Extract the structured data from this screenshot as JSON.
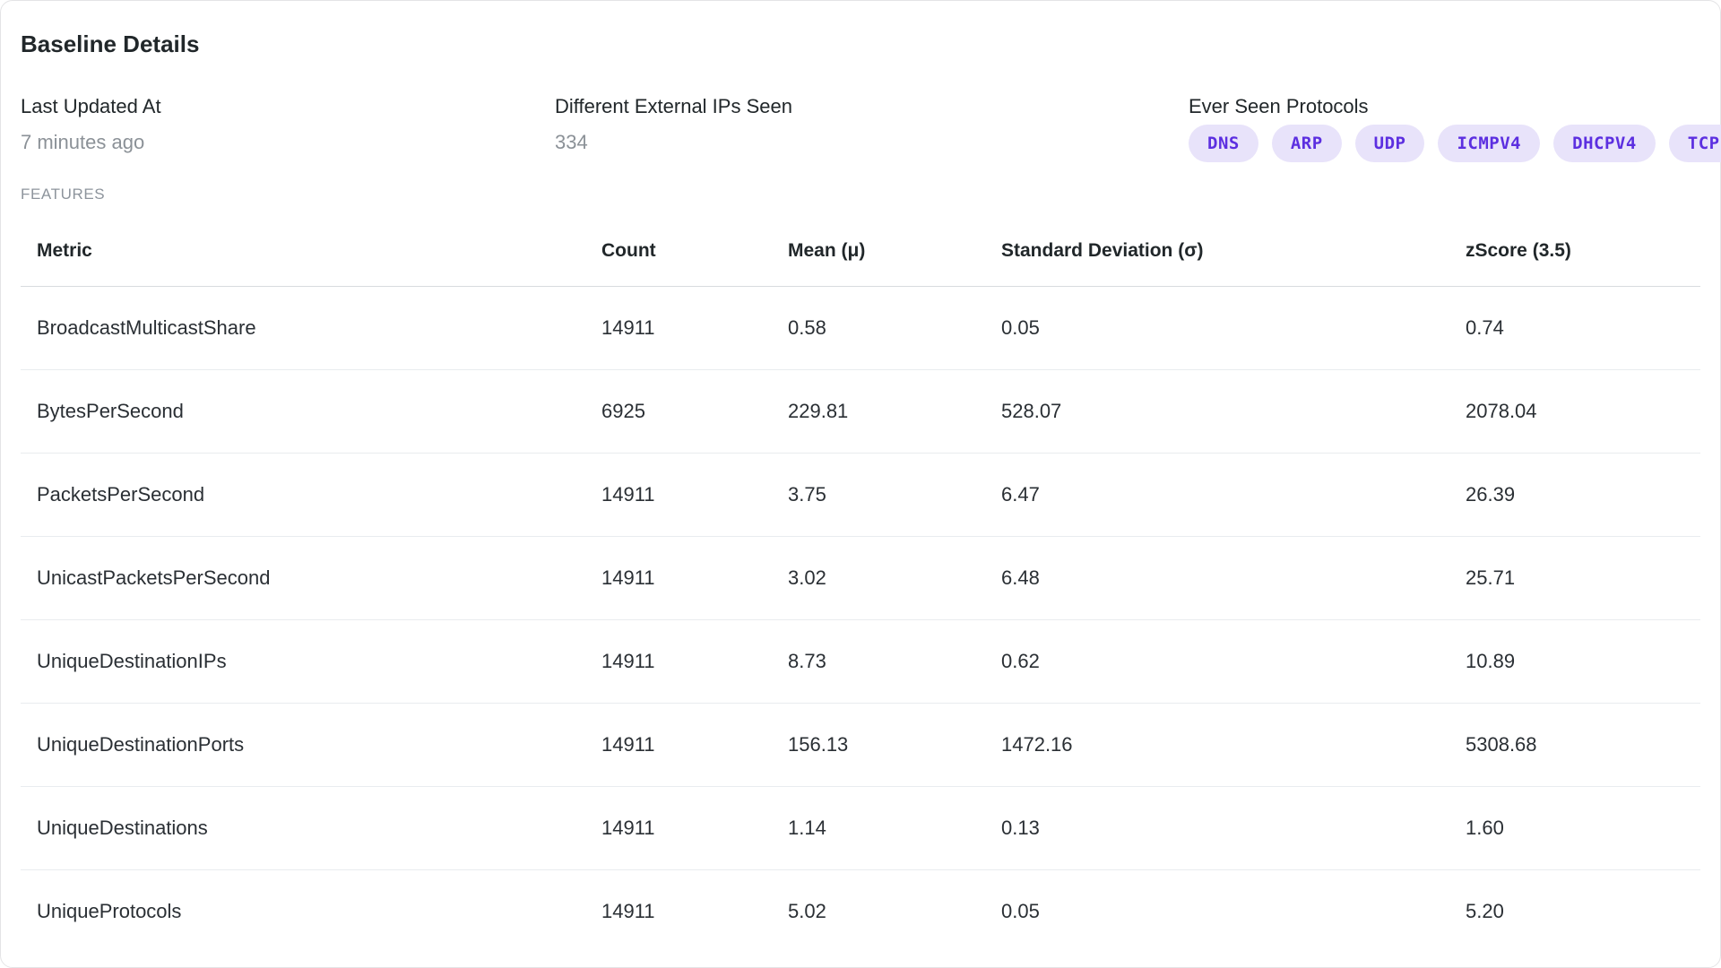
{
  "panel": {
    "title": "Baseline Details"
  },
  "info": {
    "last_updated": {
      "label": "Last Updated At",
      "value": "7 minutes ago"
    },
    "external_ips": {
      "label": "Different External IPs Seen",
      "value": "334"
    },
    "protocols": {
      "label": "Ever Seen Protocols",
      "items": [
        "DNS",
        "ARP",
        "UDP",
        "ICMPV4",
        "DHCPV4",
        "TCP"
      ]
    }
  },
  "features": {
    "section_label": "FEATURES",
    "table": {
      "columns": [
        "Metric",
        "Count",
        "Mean (μ)",
        "Standard Deviation (σ)",
        "zScore (3.5)"
      ],
      "rows": [
        [
          "BroadcastMulticastShare",
          "14911",
          "0.58",
          "0.05",
          "0.74"
        ],
        [
          "BytesPerSecond",
          "6925",
          "229.81",
          "528.07",
          "2078.04"
        ],
        [
          "PacketsPerSecond",
          "14911",
          "3.75",
          "6.47",
          "26.39"
        ],
        [
          "UnicastPacketsPerSecond",
          "14911",
          "3.02",
          "6.48",
          "25.71"
        ],
        [
          "UniqueDestinationIPs",
          "14911",
          "8.73",
          "0.62",
          "10.89"
        ],
        [
          "UniqueDestinationPorts",
          "14911",
          "156.13",
          "1472.16",
          "5308.68"
        ],
        [
          "UniqueDestinations",
          "14911",
          "1.14",
          "0.13",
          "1.60"
        ],
        [
          "UniqueProtocols",
          "14911",
          "5.02",
          "0.05",
          "5.20"
        ]
      ]
    }
  },
  "colors": {
    "pill_background": "#e8e3fa",
    "pill_text": "#5c2fe0",
    "primary_text": "#21272a",
    "secondary_text": "#8b9197",
    "divider": "#e9ecef",
    "header_divider": "#d8dbde"
  }
}
